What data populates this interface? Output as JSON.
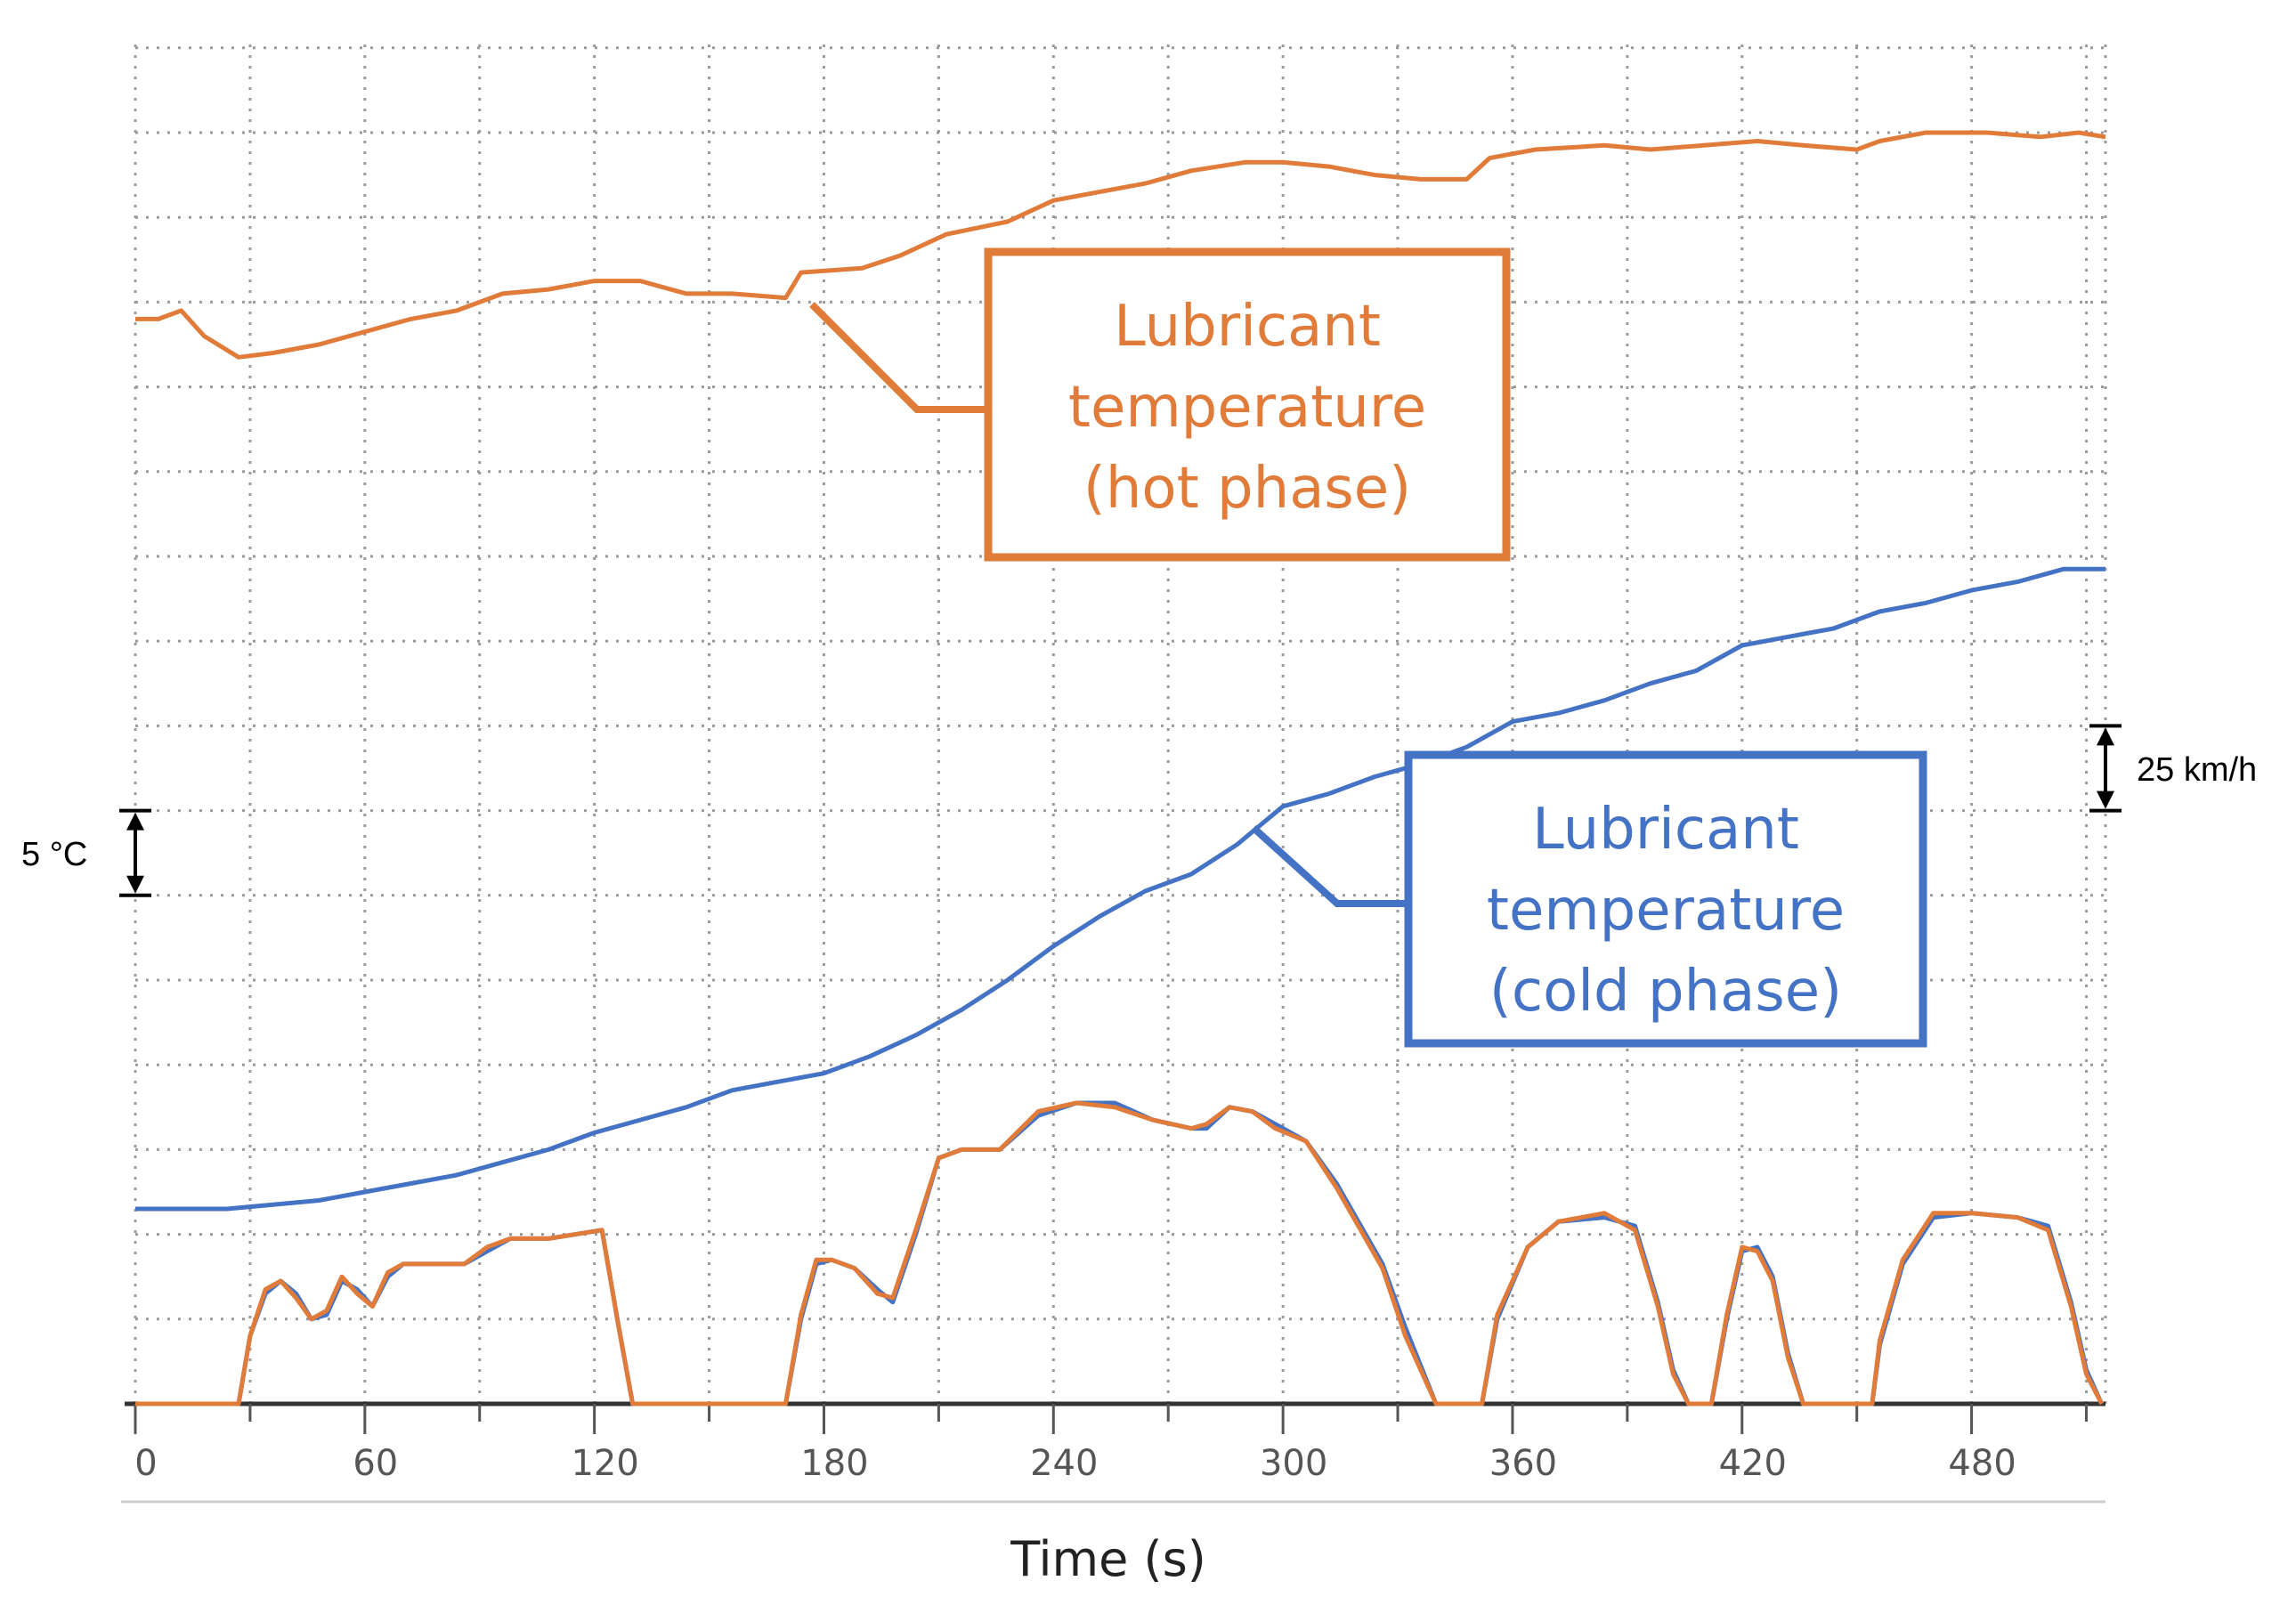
{
  "chart_data": {
    "type": "line",
    "xlabel": "Time (s)",
    "x_ticks": [
      0,
      60,
      120,
      180,
      240,
      300,
      360,
      420,
      480
    ],
    "xlim": [
      0,
      515
    ],
    "ylim": [
      0,
      16.5
    ],
    "grid": true,
    "scale_bars": [
      {
        "label": "5 °C",
        "side": "left",
        "from": 6,
        "to": 7
      },
      {
        "label": "25 km/h",
        "side": "right",
        "from": 7,
        "to": 8
      }
    ],
    "annotations": [
      {
        "lines": [
          "Lubricant",
          "temperature",
          "(hot phase)"
        ],
        "series": "hot",
        "color": "#E07B39"
      },
      {
        "lines": [
          "Lubricant",
          "temperature",
          "(cold phase)"
        ],
        "series": "cold",
        "color": "#4472C4"
      }
    ],
    "series": [
      {
        "id": "hot",
        "color": "#E07B39",
        "points": [
          [
            0,
            12.8
          ],
          [
            6,
            12.8
          ],
          [
            12,
            12.9
          ],
          [
            18,
            12.6
          ],
          [
            27,
            12.35
          ],
          [
            36,
            12.4
          ],
          [
            48,
            12.5
          ],
          [
            60,
            12.65
          ],
          [
            72,
            12.8
          ],
          [
            84,
            12.9
          ],
          [
            96,
            13.1
          ],
          [
            108,
            13.15
          ],
          [
            120,
            13.25
          ],
          [
            132,
            13.25
          ],
          [
            144,
            13.1
          ],
          [
            156,
            13.1
          ],
          [
            170,
            13.05
          ],
          [
            174,
            13.35
          ],
          [
            190,
            13.4
          ],
          [
            200,
            13.55
          ],
          [
            212,
            13.8
          ],
          [
            228,
            13.95
          ],
          [
            240,
            14.2
          ],
          [
            252,
            14.3
          ],
          [
            264,
            14.4
          ],
          [
            276,
            14.55
          ],
          [
            290,
            14.65
          ],
          [
            300,
            14.65
          ],
          [
            312,
            14.6
          ],
          [
            324,
            14.5
          ],
          [
            336,
            14.45
          ],
          [
            348,
            14.45
          ],
          [
            354,
            14.7
          ],
          [
            366,
            14.8
          ],
          [
            384,
            14.85
          ],
          [
            396,
            14.8
          ],
          [
            410,
            14.85
          ],
          [
            424,
            14.9
          ],
          [
            436,
            14.85
          ],
          [
            450,
            14.8
          ],
          [
            456,
            14.9
          ],
          [
            468,
            15.0
          ],
          [
            484,
            15.0
          ],
          [
            498,
            14.95
          ],
          [
            508,
            15.0
          ],
          [
            515,
            14.95
          ]
        ]
      },
      {
        "id": "cold",
        "color": "#4472C4",
        "points": [
          [
            0,
            2.3
          ],
          [
            24,
            2.3
          ],
          [
            36,
            2.35
          ],
          [
            48,
            2.4
          ],
          [
            60,
            2.5
          ],
          [
            72,
            2.6
          ],
          [
            84,
            2.7
          ],
          [
            96,
            2.85
          ],
          [
            108,
            3.0
          ],
          [
            120,
            3.2
          ],
          [
            132,
            3.35
          ],
          [
            144,
            3.5
          ],
          [
            156,
            3.7
          ],
          [
            168,
            3.8
          ],
          [
            180,
            3.9
          ],
          [
            192,
            4.1
          ],
          [
            204,
            4.35
          ],
          [
            216,
            4.65
          ],
          [
            228,
            5.0
          ],
          [
            240,
            5.4
          ],
          [
            252,
            5.75
          ],
          [
            264,
            6.05
          ],
          [
            276,
            6.25
          ],
          [
            288,
            6.6
          ],
          [
            300,
            7.05
          ],
          [
            312,
            7.2
          ],
          [
            324,
            7.4
          ],
          [
            336,
            7.55
          ],
          [
            348,
            7.75
          ],
          [
            360,
            8.05
          ],
          [
            372,
            8.15
          ],
          [
            384,
            8.3
          ],
          [
            396,
            8.5
          ],
          [
            408,
            8.65
          ],
          [
            420,
            8.95
          ],
          [
            432,
            9.05
          ],
          [
            444,
            9.15
          ],
          [
            456,
            9.35
          ],
          [
            468,
            9.45
          ],
          [
            480,
            9.6
          ],
          [
            492,
            9.7
          ],
          [
            504,
            9.85
          ],
          [
            515,
            9.85
          ]
        ]
      },
      {
        "id": "speed-cold",
        "color": "#4472C4",
        "points": [
          [
            0,
            0
          ],
          [
            27,
            0
          ],
          [
            30,
            0.8
          ],
          [
            34,
            1.3
          ],
          [
            38,
            1.45
          ],
          [
            42,
            1.3
          ],
          [
            46,
            1.0
          ],
          [
            50,
            1.05
          ],
          [
            54,
            1.45
          ],
          [
            58,
            1.35
          ],
          [
            62,
            1.15
          ],
          [
            66,
            1.5
          ],
          [
            70,
            1.65
          ],
          [
            76,
            1.65
          ],
          [
            86,
            1.65
          ],
          [
            92,
            1.8
          ],
          [
            98,
            1.95
          ],
          [
            108,
            1.95
          ],
          [
            122,
            2.05
          ],
          [
            126,
            1.0
          ],
          [
            130,
            0
          ],
          [
            170,
            0
          ],
          [
            174,
            1.0
          ],
          [
            178,
            1.65
          ],
          [
            182,
            1.7
          ],
          [
            188,
            1.6
          ],
          [
            194,
            1.35
          ],
          [
            198,
            1.2
          ],
          [
            204,
            2.0
          ],
          [
            210,
            2.9
          ],
          [
            216,
            3.0
          ],
          [
            226,
            3.0
          ],
          [
            236,
            3.4
          ],
          [
            246,
            3.55
          ],
          [
            256,
            3.55
          ],
          [
            266,
            3.35
          ],
          [
            276,
            3.25
          ],
          [
            280,
            3.25
          ],
          [
            286,
            3.5
          ],
          [
            292,
            3.45
          ],
          [
            298,
            3.3
          ],
          [
            306,
            3.1
          ],
          [
            314,
            2.6
          ],
          [
            326,
            1.65
          ],
          [
            332,
            0.9
          ],
          [
            340,
            0
          ],
          [
            352,
            0
          ],
          [
            356,
            1.0
          ],
          [
            364,
            1.85
          ],
          [
            372,
            2.15
          ],
          [
            384,
            2.2
          ],
          [
            392,
            2.1
          ],
          [
            398,
            1.2
          ],
          [
            402,
            0.4
          ],
          [
            406,
            0
          ],
          [
            412,
            0
          ],
          [
            416,
            1.0
          ],
          [
            420,
            1.8
          ],
          [
            424,
            1.85
          ],
          [
            428,
            1.5
          ],
          [
            432,
            0.6
          ],
          [
            436,
            0
          ],
          [
            454,
            0
          ],
          [
            456,
            0.7
          ],
          [
            462,
            1.65
          ],
          [
            470,
            2.2
          ],
          [
            480,
            2.25
          ],
          [
            492,
            2.2
          ],
          [
            500,
            2.1
          ],
          [
            506,
            1.2
          ],
          [
            510,
            0.4
          ],
          [
            514,
            0
          ]
        ]
      },
      {
        "id": "speed-hot",
        "color": "#E07B39",
        "points": [
          [
            0,
            0
          ],
          [
            27,
            0
          ],
          [
            30,
            0.8
          ],
          [
            34,
            1.35
          ],
          [
            38,
            1.45
          ],
          [
            42,
            1.25
          ],
          [
            46,
            1.0
          ],
          [
            50,
            1.1
          ],
          [
            54,
            1.5
          ],
          [
            58,
            1.3
          ],
          [
            62,
            1.15
          ],
          [
            66,
            1.55
          ],
          [
            70,
            1.65
          ],
          [
            76,
            1.65
          ],
          [
            86,
            1.65
          ],
          [
            92,
            1.85
          ],
          [
            98,
            1.95
          ],
          [
            108,
            1.95
          ],
          [
            122,
            2.05
          ],
          [
            126,
            1.0
          ],
          [
            130,
            0
          ],
          [
            170,
            0
          ],
          [
            174,
            1.05
          ],
          [
            178,
            1.7
          ],
          [
            182,
            1.7
          ],
          [
            188,
            1.6
          ],
          [
            194,
            1.3
          ],
          [
            198,
            1.25
          ],
          [
            204,
            2.05
          ],
          [
            210,
            2.9
          ],
          [
            216,
            3.0
          ],
          [
            226,
            3.0
          ],
          [
            236,
            3.45
          ],
          [
            246,
            3.55
          ],
          [
            256,
            3.5
          ],
          [
            266,
            3.35
          ],
          [
            276,
            3.25
          ],
          [
            280,
            3.3
          ],
          [
            286,
            3.5
          ],
          [
            292,
            3.45
          ],
          [
            298,
            3.25
          ],
          [
            306,
            3.1
          ],
          [
            314,
            2.55
          ],
          [
            326,
            1.6
          ],
          [
            332,
            0.8
          ],
          [
            340,
            0
          ],
          [
            352,
            0
          ],
          [
            356,
            1.05
          ],
          [
            364,
            1.85
          ],
          [
            372,
            2.15
          ],
          [
            384,
            2.25
          ],
          [
            392,
            2.05
          ],
          [
            398,
            1.15
          ],
          [
            402,
            0.35
          ],
          [
            406,
            0
          ],
          [
            412,
            0
          ],
          [
            416,
            1.05
          ],
          [
            420,
            1.85
          ],
          [
            424,
            1.8
          ],
          [
            428,
            1.45
          ],
          [
            432,
            0.55
          ],
          [
            436,
            0
          ],
          [
            454,
            0
          ],
          [
            456,
            0.75
          ],
          [
            462,
            1.7
          ],
          [
            470,
            2.25
          ],
          [
            480,
            2.25
          ],
          [
            492,
            2.2
          ],
          [
            500,
            2.05
          ],
          [
            506,
            1.15
          ],
          [
            510,
            0.35
          ],
          [
            514,
            0
          ]
        ]
      }
    ]
  }
}
